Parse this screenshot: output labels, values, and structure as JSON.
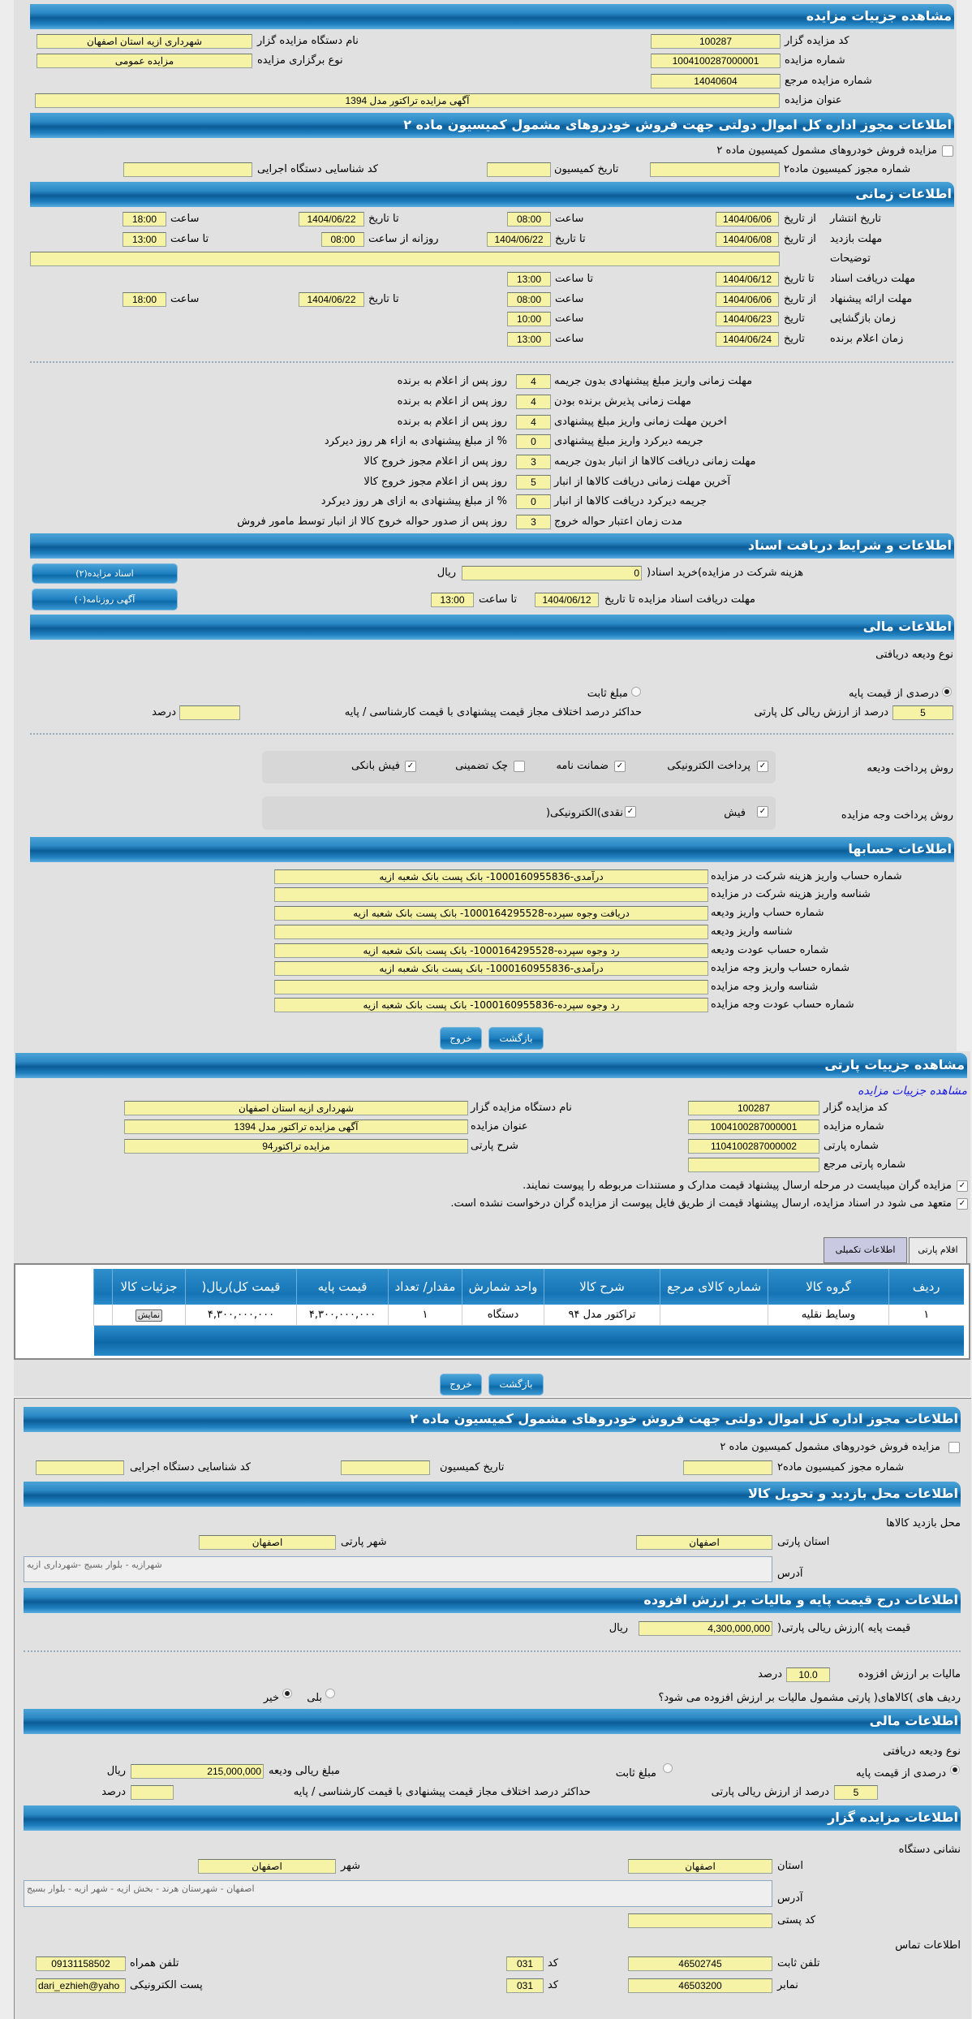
{
  "auction": {
    "title": "مشاهده جزییات مزایده",
    "code_label": "کد مزایده گزار",
    "code": "100287",
    "org_label": "نام دستگاه مزایده گزار",
    "org": "شهرداری ازیه استان اصفهان",
    "number_label": "شماره مزایده",
    "number": "1004100287000001",
    "type_label": "نوع برگزاری مزایده",
    "type": "مزایده عمومی",
    "ref_label": "شماره مزایده مرجع",
    "ref": "14040604",
    "subject_label": "عنوان مزایده",
    "subject": "آگهی مزایده تراکتور مدل 1394"
  },
  "permit": {
    "title": "اطلاعات مجوز اداره کل اموال دولتی جهت فروش خودروهای مشمول کمیسیون ماده ۲",
    "checkbox_label": "مزایده فروش خودروهای مشمول کمیسیون ماده ۲",
    "checked": false,
    "permit_no_label": "شماره مجوز کمیسیون ماده۲",
    "permit_no": "",
    "date_label": "تاریخ کمیسیون",
    "date": "",
    "exec_code_label": "کد شناسایی دستگاه اجرایی",
    "exec_code": ""
  },
  "timing": {
    "title": "اطلاعات زمانی",
    "from_date": "از تاریخ",
    "to_date": "تا تاریخ",
    "date": "تاریخ",
    "hour": "ساعت",
    "to_hour": "تا ساعت",
    "daily_from_hour": "روزانه از ساعت",
    "publish": {
      "label": "تاریخ انتشار",
      "from": "1404/06/06",
      "from_time": "08:00",
      "to": "1404/06/22",
      "to_time": "18:00"
    },
    "visit": {
      "label": "مهلت بازدید",
      "from": "1404/06/08",
      "to": "1404/06/22",
      "daily_from": "08:00",
      "daily_to": "13:00"
    },
    "notes": {
      "label": "توضیحات",
      "value": ""
    },
    "docs": {
      "label": "مهلت دریافت اسناد",
      "to": "1404/06/12",
      "to_time": "13:00"
    },
    "offer": {
      "label": "مهلت ارائه پیشنهاد",
      "from": "1404/06/06",
      "from_time": "08:00",
      "to": "1404/06/22",
      "to_time": "18:00"
    },
    "opening": {
      "label": "زمان بازگشایی",
      "date": "1404/06/23",
      "time": "10:00"
    },
    "winner": {
      "label": "زمان اعلام برنده",
      "date": "1404/06/24",
      "time": "13:00"
    }
  },
  "deadlines": [
    {
      "label": "مهلت زمانی واریز مبلغ پیشنهادی بدون جریمه",
      "value": "4",
      "suffix": "روز پس از اعلام به برنده"
    },
    {
      "label": "مهلت زمانی پذیرش برنده بودن",
      "value": "4",
      "suffix": "روز پس از اعلام به برنده"
    },
    {
      "label": "اخرین مهلت زمانی واریز مبلغ پیشنهادی",
      "value": "4",
      "suffix": "روز پس از اعلام به برنده"
    },
    {
      "label": "جریمه دیرکرد واریز مبلغ پیشنهادی",
      "value": "0",
      "suffix": "% از مبلغ پیشنهادی به ازاء هر روز دیرکرد"
    },
    {
      "label": "مهلت زمانی دریافت کالاها از انبار بدون جریمه",
      "value": "3",
      "suffix": "روز پس از اعلام مجوز خروج کالا"
    },
    {
      "label": "آخرین مهلت زمانی دریافت کالاها از انبار",
      "value": "5",
      "suffix": "روز پس از اعلام مجوز خروج کالا"
    },
    {
      "label": "جریمه دیرکرد دریافت کالاها از انبار",
      "value": "0",
      "suffix": "% از مبلغ پیشنهادی به ازای هر روز دیرکرد"
    },
    {
      "label": "مدت زمان اعتبار حواله خروج",
      "value": "3",
      "suffix": "روز پس از صدور حواله خروج کالا از انبار توسط مامور فروش"
    }
  ],
  "documents": {
    "title": "اطلاعات و شرایط دریافت اسناد",
    "docs_button": "اسناد مزایده(۲)",
    "news_button": "آگهی روزنامه(۰)",
    "fee_label": "هزینه شرکت در مزایده)خرید اسناد(",
    "fee": "0",
    "currency": "ریال",
    "deadline_label": "مهلت دریافت اسناد مزایده تا تاریخ",
    "deadline_date": "1404/06/12",
    "to_hour": "تا ساعت",
    "deadline_time": "13:00"
  },
  "finance": {
    "title": "اطلاعات مالی",
    "deposit_type_label": "نوع ودیعه دریافتی",
    "percent_option": "درصدی از قیمت پایه",
    "percent_selected": true,
    "fixed_option": "مبلغ ثابت",
    "fixed_selected": false,
    "percent_value": "5",
    "percent_label": "درصد از ارزش ریالی کل پارتی",
    "max_diff_label": "حداکثر درصد اختلاف مجاز قیمت پیشنهادی با قیمت کارشناسی / پایه",
    "max_diff": "",
    "percent_unit": "درصد",
    "deposit_method_label": "روش پرداخت ودیعه",
    "deposit_methods": [
      {
        "label": "پرداخت الکترونیکی",
        "checked": true
      },
      {
        "label": "ضمانت نامه",
        "checked": true
      },
      {
        "label": "چک تضمینی",
        "checked": false
      },
      {
        "label": "فیش بانکی",
        "checked": true
      }
    ],
    "payment_method_label": "روش پرداخت وجه مزایده",
    "payment_methods": [
      {
        "label": "فیش",
        "checked": true
      },
      {
        "label": "نقدی)الکترونیکی(",
        "checked": true
      }
    ]
  },
  "accounts": {
    "title": "اطلاعات حسابها",
    "rows": [
      {
        "label": "شماره حساب واریز هزینه شرکت در مزایده",
        "value": "درآمدی-1000160955836- بانک پست بانک شعبه ازیه"
      },
      {
        "label": "شناسه واریز هزینه شرکت در مزایده",
        "value": ""
      },
      {
        "label": "شماره حساب واریز ودیعه",
        "value": "دریافت وجوه سپرده-1000164295528- بانک پست بانک شعبه ازیه"
      },
      {
        "label": "شناسه واریز ودیعه",
        "value": ""
      },
      {
        "label": "شماره حساب عودت ودیعه",
        "value": "رد وجوه سپرده-1000164295528- بانک پست بانک شعبه ازیه"
      },
      {
        "label": "شماره حساب واریز وجه مزایده",
        "value": "درآمدی-1000160955836- بانک پست بانک شعبه ازیه"
      },
      {
        "label": "شناسه واریز وجه مزایده",
        "value": ""
      },
      {
        "label": "شماره حساب عودت وجه مزایده",
        "value": "رد وجوه سپرده-1000160955836- بانک پست بانک شعبه ازیه"
      }
    ]
  },
  "buttons": {
    "back": "بازگشت",
    "exit": "خروج"
  },
  "lot": {
    "title": "مشاهده جزییات پارتی",
    "auction_link": "مشاهده جزییات مزایده",
    "code_label": "کد مزایده گزار",
    "code": "100287",
    "org_label": "نام دستگاه مزایده گزار",
    "org": "شهرداری ازیه استان اصفهان",
    "number_label": "شماره مزایده",
    "number": "1004100287000001",
    "subject_label": "عنوان مزایده",
    "subject": "آگهی مزایده تراکتور مدل 1394",
    "lot_no_label": "شماره پارتی",
    "lot_no": "1104100287000002",
    "lot_desc_label": "شرح پارتی",
    "lot_desc": "مزایده تراکتور94",
    "lot_ref_label": "شماره پارتی مرجع",
    "lot_ref": "",
    "notice1": "مزایده گران میبایست در مرحله ارسال پیشنهاد قیمت مدارک و مستندات مربوطه را پیوست نمایند.",
    "notice2": "متعهد می شود در اسناد مزایده، ارسال پیشنهاد قیمت از طریق فایل پیوست از مزایده گران درخواست نشده است.",
    "tabs": [
      "اقلام پارتی",
      "اطلاعات تکمیلی"
    ],
    "table": {
      "headers": [
        "ردیف",
        "گروه کالا",
        "شماره کالای مرجع",
        "شرح کالا",
        "واحد شمارش",
        "مقدار/ تعداد",
        "قیمت پایه",
        "قیمت کل)ریال(",
        "جزئیات کالا",
        ""
      ],
      "rows": [
        [
          "١",
          "وسایط نقلیه",
          "",
          "تراکتور مدل ۹۴",
          "دستگاه",
          "١",
          "۴,۳۰۰,۰۰۰,۰۰۰",
          "۴,۳۰۰,۰۰۰,۰۰۰",
          "نمایش",
          ""
        ]
      ]
    }
  },
  "lot_permit": {
    "title": "اطلاعات مجوز اداره کل اموال دولتی جهت فروش خودروهای مشمول کمیسیون ماده ۲",
    "checkbox_label": "مزایده فروش خودروهای مشمول کمیسیون ماده ۲",
    "permit_no_label": "شماره مجوز کمیسیون ماده۲",
    "date_label": "تاریخ کمیسیون",
    "exec_code_label": "کد شناسایی دستگاه اجرایی"
  },
  "visit_place": {
    "title": "اطلاعات محل بازدید و تحویل کالا",
    "subtitle": "محل بازدید کالاها",
    "province_label": "استان پارتی",
    "province": "اصفهان",
    "city_label": "شهر پارتی",
    "city": "اصفهان",
    "address_label": "آدرس",
    "address": "شهرازیه - بلوار بسیج -شهرداری ازیه"
  },
  "pricing": {
    "title": "اطلاعات درج قیمت پایه و مالیات بر ارزش افزوده",
    "base_label": "قیمت پایه )ارزش ریالی پارتی(",
    "base": "4,300,000,000",
    "currency": "ریال",
    "vat_label": "مالیات بر ارزش افزوده",
    "vat": "10.0",
    "vat_unit": "درصد",
    "vat_q": "ردیف های )کالاهای( پارتی مشمول مالیات بر ارزش افزوده می شود؟",
    "yes": "بلی",
    "no": "خیر",
    "vat_applies": false
  },
  "lot_finance": {
    "title": "اطلاعات مالی",
    "deposit_type_label": "نوع ودیعه دریافتی",
    "percent_option": "درصدی از قیمت پایه",
    "fixed_option": "مبلغ ثابت",
    "amount_label": "مبلغ ریالی ودیعه",
    "amount": "215,000,000",
    "currency": "ریال",
    "percent_value": "5",
    "percent_label": "درصد از ارزش ریالی پارتی",
    "max_diff_label": "حداکثر درصد اختلاف مجاز قیمت پیشنهادی با قیمت کارشناسی / پایه",
    "max_diff": "",
    "percent_unit": "درصد"
  },
  "auctioneer": {
    "title": "اطلاعات مزایده گزار",
    "address_title": "نشانی دستگاه",
    "province_label": "استان",
    "province": "اصفهان",
    "city_label": "شهر",
    "city": "اصفهان",
    "address_label": "آدرس",
    "address": "اصفهان - شهرستان هرند - بخش ازیه - شهر ازیه - بلوار بسیج",
    "postal_label": "کد پستی",
    "postal": "",
    "contact_title": "اطلاعات تماس",
    "phone_label": "تلفن ثابت",
    "phone": "46502745",
    "fax_label": "نمابر",
    "fax": "46503200",
    "code_label": "کد",
    "phone_code": "031",
    "fax_code": "031",
    "mobile_label": "تلفن همراه",
    "mobile": "09131158502",
    "email_label": "پست الکترونیکی",
    "email": "dari_ezhieh@yaho"
  },
  "colors": {
    "header": "#1574b5",
    "input": "#f6f3a7",
    "panel": "#e1e1e1",
    "link": "#1a1ae0"
  }
}
